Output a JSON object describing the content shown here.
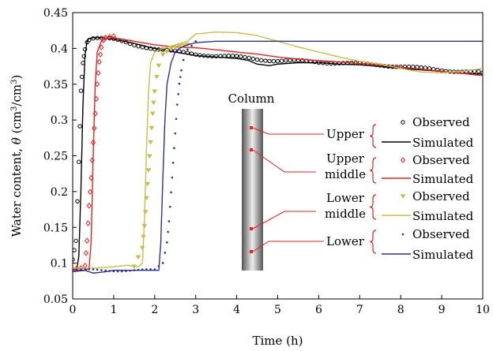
{
  "chart_data": {
    "type": "line",
    "xlabel": "Time (h)",
    "ylabel_parts": [
      "Water content, ",
      "θ",
      " (cm",
      "3",
      "/cm",
      "3",
      ")"
    ],
    "xlim": [
      0,
      10
    ],
    "ylim": [
      0.05,
      0.45
    ],
    "x_ticks": [
      0,
      1,
      2,
      3,
      4,
      5,
      6,
      7,
      8,
      9,
      10
    ],
    "y_ticks": [
      "0.05",
      "0.1",
      "0.15",
      "0.2",
      "0.25",
      "0.3",
      "0.35",
      "0.4",
      "0.45"
    ],
    "grid": false,
    "inset": {
      "title": "Column",
      "depth_labels": [
        "Upper",
        "Upper middle",
        "Lower middle",
        "Lower"
      ]
    },
    "series": [
      {
        "group": "Upper",
        "name": "Observed",
        "kind": "observed",
        "marker": "circle",
        "color": "#000000",
        "x": [
          0.0,
          0.08,
          0.15,
          0.2,
          0.25,
          0.3,
          0.35,
          0.4,
          0.5,
          0.6,
          0.8,
          1.0,
          1.5,
          2.0,
          2.5,
          3.0,
          3.5,
          4.0,
          4.5,
          5.0,
          5.5,
          6.0,
          6.5,
          7.0,
          7.5,
          8.0,
          8.5,
          9.0,
          9.5,
          10.0
        ],
        "y": [
          0.105,
          0.13,
          0.24,
          0.34,
          0.38,
          0.4,
          0.41,
          0.413,
          0.415,
          0.415,
          0.414,
          0.412,
          0.405,
          0.4,
          0.395,
          0.392,
          0.39,
          0.388,
          0.385,
          0.383,
          0.382,
          0.381,
          0.38,
          0.378,
          0.377,
          0.375,
          0.372,
          0.37,
          0.368,
          0.366
        ]
      },
      {
        "group": "Upper",
        "name": "Simulated",
        "kind": "simulated",
        "color": "#000000",
        "x": [
          0.0,
          0.1,
          0.15,
          0.2,
          0.25,
          0.3,
          0.35,
          0.4,
          0.5,
          0.7,
          1.0,
          1.5,
          2.0,
          2.5,
          3.0,
          3.5,
          4.0,
          4.3,
          4.5,
          4.8,
          5.0,
          5.5,
          6.0,
          6.5,
          7.0,
          7.5,
          8.0,
          8.5,
          9.0,
          9.5,
          10.0
        ],
        "y": [
          0.092,
          0.092,
          0.11,
          0.2,
          0.32,
          0.39,
          0.41,
          0.414,
          0.415,
          0.415,
          0.413,
          0.407,
          0.4,
          0.395,
          0.39,
          0.388,
          0.386,
          0.383,
          0.378,
          0.376,
          0.378,
          0.38,
          0.38,
          0.378,
          0.377,
          0.375,
          0.372,
          0.37,
          0.368,
          0.365,
          0.364
        ]
      },
      {
        "group": "Upper middle",
        "name": "Observed",
        "kind": "observed",
        "marker": "diamond",
        "color": "#e8231f",
        "x": [
          0.0,
          0.2,
          0.3,
          0.35,
          0.4,
          0.45,
          0.5,
          0.55,
          0.6,
          0.65,
          0.7,
          0.75,
          0.8,
          0.9,
          1.0
        ],
        "y": [
          0.092,
          0.092,
          0.095,
          0.13,
          0.18,
          0.22,
          0.27,
          0.31,
          0.35,
          0.38,
          0.4,
          0.41,
          0.414,
          0.416,
          0.417
        ]
      },
      {
        "group": "Upper middle",
        "name": "Simulated",
        "kind": "simulated",
        "color": "#e8231f",
        "x": [
          0.0,
          0.3,
          0.4,
          0.45,
          0.5,
          0.55,
          0.6,
          0.7,
          0.8,
          1.0,
          1.5,
          2.0,
          2.5,
          3.0,
          3.5,
          4.0,
          4.5,
          5.0,
          5.5,
          6.0,
          6.5,
          7.0,
          7.5,
          8.0,
          8.5,
          9.0,
          9.5,
          10.0
        ],
        "y": [
          0.09,
          0.09,
          0.093,
          0.13,
          0.25,
          0.35,
          0.395,
          0.41,
          0.414,
          0.415,
          0.41,
          0.405,
          0.402,
          0.401,
          0.398,
          0.395,
          0.392,
          0.388,
          0.385,
          0.383,
          0.381,
          0.379,
          0.377,
          0.374,
          0.371,
          0.368,
          0.365,
          0.362
        ]
      },
      {
        "group": "Lower middle",
        "name": "Observed",
        "kind": "observed",
        "marker": "triangle",
        "color": "#c8bd4e",
        "x": [
          1.5,
          1.7,
          1.75,
          1.8,
          1.85,
          1.9,
          1.95,
          2.0,
          2.05,
          2.1,
          2.2,
          2.4,
          2.6,
          2.8
        ],
        "y": [
          0.095,
          0.12,
          0.15,
          0.19,
          0.23,
          0.27,
          0.31,
          0.34,
          0.36,
          0.375,
          0.39,
          0.398,
          0.402,
          0.405
        ]
      },
      {
        "group": "Lower middle",
        "name": "Simulated",
        "kind": "simulated",
        "color": "#c8bd4e",
        "x": [
          0.0,
          0.5,
          1.0,
          1.3,
          1.5,
          1.6,
          1.7,
          1.75,
          1.8,
          1.85,
          1.9,
          2.0,
          2.2,
          2.5,
          2.8,
          3.0,
          3.5,
          4.0,
          4.5,
          5.0,
          5.5,
          6.0,
          6.5,
          7.0,
          7.5,
          8.0,
          8.5,
          9.0,
          9.5,
          10.0
        ],
        "y": [
          0.093,
          0.093,
          0.095,
          0.097,
          0.096,
          0.095,
          0.1,
          0.16,
          0.26,
          0.34,
          0.38,
          0.395,
          0.4,
          0.405,
          0.41,
          0.42,
          0.423,
          0.422,
          0.418,
          0.41,
          0.402,
          0.395,
          0.388,
          0.382,
          0.378,
          0.372,
          0.367,
          0.366,
          0.368,
          0.372
        ]
      },
      {
        "group": "Lower",
        "name": "Observed",
        "kind": "observed",
        "marker": "dot",
        "color": "#2e3192",
        "x": [
          0.0,
          0.5,
          1.0,
          1.5,
          2.0,
          2.2,
          2.3,
          2.35,
          2.4,
          2.45,
          2.5,
          2.55,
          2.6,
          2.65,
          2.7,
          2.75,
          2.8,
          2.9,
          3.0
        ],
        "y": [
          0.09,
          0.09,
          0.09,
          0.09,
          0.09,
          0.1,
          0.13,
          0.16,
          0.2,
          0.24,
          0.28,
          0.32,
          0.35,
          0.37,
          0.385,
          0.395,
          0.4,
          0.405,
          0.41
        ]
      },
      {
        "group": "Lower",
        "name": "Simulated",
        "kind": "simulated",
        "color": "#2e3192",
        "x": [
          0.0,
          0.3,
          0.5,
          0.8,
          1.0,
          1.5,
          2.0,
          2.1,
          2.15,
          2.2,
          2.25,
          2.3,
          2.4,
          2.5,
          2.6,
          2.8,
          3.0,
          3.5,
          4.0,
          5.0,
          6.0,
          7.0,
          8.0,
          9.0,
          10.0
        ],
        "y": [
          0.088,
          0.09,
          0.086,
          0.088,
          0.09,
          0.09,
          0.09,
          0.09,
          0.13,
          0.22,
          0.3,
          0.35,
          0.38,
          0.395,
          0.4,
          0.405,
          0.408,
          0.41,
          0.41,
          0.41,
          0.41,
          0.41,
          0.41,
          0.41,
          0.41
        ]
      }
    ]
  }
}
